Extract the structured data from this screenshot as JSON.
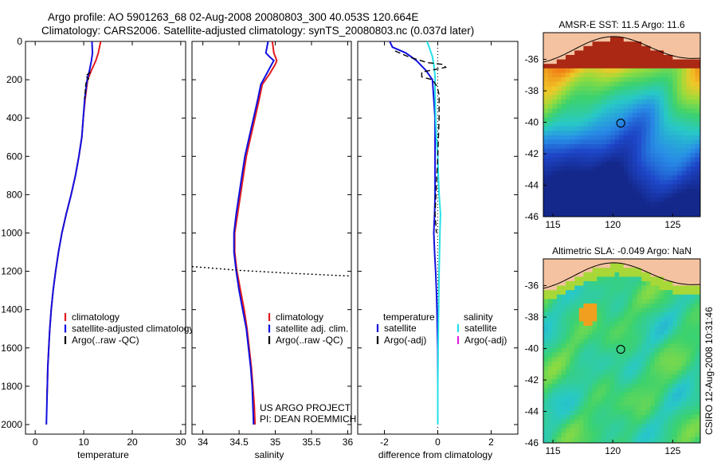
{
  "title": {
    "line1": "Argo profile: AO 5901263_68 02-Aug-2008 20080803_300 40.053S 120.664E",
    "line2": "Climatology: CARS2006. Satellite-adjusted climatology: synTS_20080803.nc (0.037d later)"
  },
  "credits": {
    "project": "US ARGO PROJECT",
    "pi": "PI: DEAN ROEMMICH",
    "side": "CSIRO 12-Aug-2008 10:31:46"
  },
  "colors": {
    "climatology": "#e31a1c",
    "satellite": "#1010e0",
    "argo": "#000000",
    "salinity_satellite": "#22e0e8",
    "salinity_argo": "#e020e0",
    "land": "#f4c2a0"
  },
  "chart_data": [
    {
      "id": "temperature",
      "type": "line",
      "xlabel": "temperature",
      "ylabel": "",
      "xlim": [
        -2,
        31
      ],
      "ylim": [
        2050,
        0
      ],
      "x_ticks": [
        "0",
        "10",
        "20",
        "30"
      ],
      "x_tick_values": [
        0,
        10,
        20,
        30
      ],
      "y_ticks": [
        "0",
        "200",
        "400",
        "600",
        "800",
        "1000",
        "1200",
        "1400",
        "1600",
        "1800",
        "2000"
      ],
      "y_tick_values": [
        0,
        200,
        400,
        600,
        800,
        1000,
        1200,
        1400,
        1600,
        1800,
        2000
      ],
      "legend": [
        "climatology",
        "satellite-adjusted climatology",
        "Argo(..raw -QC)"
      ],
      "series": [
        {
          "name": "climatology",
          "color_key": "climatology",
          "dash": "",
          "points": [
            [
              13.5,
              0
            ],
            [
              13.0,
              60
            ],
            [
              12.5,
              100
            ],
            [
              11.6,
              150
            ],
            [
              10.8,
              200
            ],
            [
              10.3,
              300
            ],
            [
              9.9,
              400
            ],
            [
              9.6,
              500
            ],
            [
              9.0,
              600
            ],
            [
              8.3,
              700
            ],
            [
              7.4,
              800
            ],
            [
              6.4,
              900
            ],
            [
              5.5,
              1000
            ],
            [
              4.8,
              1100
            ],
            [
              4.2,
              1200
            ],
            [
              3.7,
              1300
            ],
            [
              3.3,
              1400
            ],
            [
              3.0,
              1500
            ],
            [
              2.8,
              1600
            ],
            [
              2.6,
              1700
            ],
            [
              2.5,
              1800
            ],
            [
              2.4,
              1870
            ]
          ]
        },
        {
          "name": "satellite-adjusted climatology",
          "color_key": "satellite",
          "dash": "",
          "points": [
            [
              11.7,
              0
            ],
            [
              11.8,
              60
            ],
            [
              11.6,
              100
            ],
            [
              11.2,
              150
            ],
            [
              10.7,
              200
            ],
            [
              10.2,
              300
            ],
            [
              9.9,
              400
            ],
            [
              9.6,
              500
            ],
            [
              9.0,
              600
            ],
            [
              8.3,
              700
            ],
            [
              7.4,
              800
            ],
            [
              6.4,
              900
            ],
            [
              5.5,
              1000
            ],
            [
              4.8,
              1100
            ],
            [
              4.2,
              1200
            ],
            [
              3.7,
              1300
            ],
            [
              3.3,
              1400
            ],
            [
              3.0,
              1500
            ],
            [
              2.8,
              1600
            ],
            [
              2.6,
              1700
            ],
            [
              2.5,
              1800
            ],
            [
              2.4,
              1900
            ],
            [
              2.3,
              2000
            ]
          ]
        },
        {
          "name": "Argo(..raw -QC)",
          "color_key": "argo",
          "dash": "6,3",
          "points": [
            [
              11.4,
              160
            ],
            [
              10.4,
              180
            ],
            [
              11.0,
              195
            ],
            [
              10.5,
              215
            ],
            [
              10.4,
              230
            ],
            [
              10.2,
              300
            ]
          ]
        }
      ]
    },
    {
      "id": "salinity",
      "type": "line",
      "xlabel": "salinity",
      "ylabel": "",
      "xlim": [
        33.85,
        36.05
      ],
      "ylim": [
        2050,
        0
      ],
      "x_ticks": [
        "34",
        "34.5",
        "35",
        "35.5",
        "36"
      ],
      "x_tick_values": [
        34,
        34.5,
        35,
        35.5,
        36
      ],
      "legend": [
        "climatology",
        "satellite adj. clim.",
        "Argo(..raw -QC)"
      ],
      "series": [
        {
          "name": "climatology",
          "color_key": "climatology",
          "dash": "",
          "points": [
            [
              34.96,
              0
            ],
            [
              34.98,
              60
            ],
            [
              35.02,
              100
            ],
            [
              35.0,
              120
            ],
            [
              34.92,
              170
            ],
            [
              34.82,
              225
            ],
            [
              34.78,
              300
            ],
            [
              34.72,
              400
            ],
            [
              34.66,
              500
            ],
            [
              34.6,
              600
            ],
            [
              34.56,
              700
            ],
            [
              34.52,
              800
            ],
            [
              34.48,
              900
            ],
            [
              34.44,
              1000
            ],
            [
              34.44,
              1100
            ],
            [
              34.47,
              1200
            ],
            [
              34.52,
              1300
            ],
            [
              34.57,
              1400
            ],
            [
              34.61,
              1500
            ],
            [
              34.64,
              1600
            ],
            [
              34.67,
              1700
            ],
            [
              34.69,
              1800
            ],
            [
              34.71,
              1900
            ],
            [
              34.72,
              2000
            ]
          ]
        },
        {
          "name": "satellite adj. clim.",
          "color_key": "satellite",
          "dash": "",
          "points": [
            [
              34.9,
              0
            ],
            [
              34.87,
              60
            ],
            [
              34.92,
              80
            ],
            [
              34.98,
              100
            ],
            [
              34.95,
              120
            ],
            [
              34.88,
              170
            ],
            [
              34.8,
              225
            ],
            [
              34.76,
              300
            ],
            [
              34.7,
              400
            ],
            [
              34.64,
              500
            ],
            [
              34.58,
              600
            ],
            [
              34.54,
              700
            ],
            [
              34.5,
              800
            ],
            [
              34.46,
              900
            ],
            [
              34.43,
              1000
            ],
            [
              34.43,
              1100
            ],
            [
              34.46,
              1200
            ],
            [
              34.5,
              1300
            ],
            [
              34.55,
              1400
            ],
            [
              34.6,
              1500
            ],
            [
              34.63,
              1600
            ],
            [
              34.66,
              1700
            ],
            [
              34.68,
              1800
            ],
            [
              34.69,
              1900
            ],
            [
              34.7,
              2000
            ]
          ]
        },
        {
          "name": "",
          "color_key": "argo",
          "dash": "2,3",
          "points": [
            [
              33.85,
              1175
            ],
            [
              34.5,
              1195
            ],
            [
              35.2,
              1210
            ],
            [
              36.05,
              1225
            ]
          ]
        }
      ]
    },
    {
      "id": "difference",
      "type": "line",
      "xlabel": "difference from climatology",
      "ylabel": "",
      "xlim": [
        -3,
        3
      ],
      "ylim": [
        2050,
        0
      ],
      "x_ticks": [
        "-2",
        "0",
        "2"
      ],
      "x_tick_values": [
        -2,
        0,
        2
      ],
      "legend_headers": [
        "temperature",
        "salinity"
      ],
      "legend": [
        "satellite",
        "Argo(-adj)",
        "satellite",
        "Argo(-adj)"
      ],
      "series": [
        {
          "name": "temperature satellite",
          "color_key": "satellite",
          "dash": "",
          "points": [
            [
              -1.8,
              0
            ],
            [
              -1.7,
              30
            ],
            [
              -1.2,
              60
            ],
            [
              -0.8,
              100
            ],
            [
              -0.45,
              150
            ],
            [
              -0.2,
              200
            ],
            [
              -0.15,
              300
            ],
            [
              -0.1,
              400
            ],
            [
              -0.1,
              500
            ],
            [
              -0.1,
              600
            ],
            [
              -0.1,
              700
            ],
            [
              -0.1,
              800
            ],
            [
              -0.12,
              900
            ],
            [
              -0.15,
              1000
            ],
            [
              -0.12,
              1100
            ],
            [
              -0.08,
              1200
            ],
            [
              -0.05,
              1300
            ],
            [
              -0.03,
              1400
            ],
            [
              0,
              1600
            ],
            [
              0,
              1800
            ],
            [
              0,
              2000
            ]
          ]
        },
        {
          "name": "salinity satellite",
          "color_key": "salinity_satellite",
          "dash": "",
          "points": [
            [
              -0.4,
              0
            ],
            [
              -0.3,
              40
            ],
            [
              -0.2,
              80
            ],
            [
              -0.15,
              120
            ],
            [
              -0.1,
              180
            ],
            [
              -0.1,
              250
            ],
            [
              -0.08,
              400
            ],
            [
              -0.05,
              500
            ],
            [
              0,
              600
            ],
            [
              0.02,
              700
            ],
            [
              0.05,
              800
            ],
            [
              0.1,
              900
            ],
            [
              0.08,
              1000
            ],
            [
              0.05,
              1200
            ],
            [
              0.02,
              1500
            ],
            [
              0,
              1800
            ],
            [
              0,
              2000
            ]
          ]
        },
        {
          "name": "temperature Argo(-adj)",
          "color_key": "argo",
          "dash": "7,4",
          "points": [
            [
              -1.6,
              50
            ],
            [
              -1.1,
              80
            ],
            [
              -0.4,
              110
            ],
            [
              0.2,
              120
            ],
            [
              0.3,
              135
            ],
            [
              -0.6,
              160
            ],
            [
              -0.6,
              185
            ],
            [
              -0.2,
              200
            ],
            [
              -0.05,
              230
            ],
            [
              0,
              250
            ],
            [
              0.05,
              280
            ],
            [
              0.05,
              400
            ],
            [
              0,
              600
            ],
            [
              -0.1,
              900
            ],
            [
              -0.05,
              1000
            ]
          ]
        }
      ],
      "zero_line": 0
    },
    {
      "id": "sst_map",
      "type": "heatmap",
      "title": "AMSR-E SST: 11.5 Argo: 11.6",
      "x_ticks": [
        "115",
        "120",
        "125"
      ],
      "x_tick_values": [
        115,
        120,
        125
      ],
      "y_ticks": [
        "-36",
        "-38",
        "-40",
        "-42",
        "-44",
        "-46"
      ],
      "y_tick_values": [
        -36,
        -38,
        -40,
        -42,
        -44,
        -46
      ],
      "xlim": [
        114.2,
        127.3
      ],
      "ylim": [
        -46,
        -34.3
      ],
      "marker": {
        "lon": 120.664,
        "lat": -40.053
      }
    },
    {
      "id": "sla_map",
      "type": "heatmap",
      "title": "Altimetric SLA: -0.049 Argo: NaN",
      "x_ticks": [
        "115",
        "120",
        "125"
      ],
      "x_tick_values": [
        115,
        120,
        125
      ],
      "y_ticks": [
        "-36",
        "-38",
        "-40",
        "-42",
        "-44",
        "-46"
      ],
      "y_tick_values": [
        -36,
        -38,
        -40,
        -42,
        -44,
        -46
      ],
      "xlim": [
        114.2,
        127.3
      ],
      "ylim": [
        -46,
        -34.3
      ],
      "marker": {
        "lon": 120.664,
        "lat": -40.053
      }
    }
  ]
}
